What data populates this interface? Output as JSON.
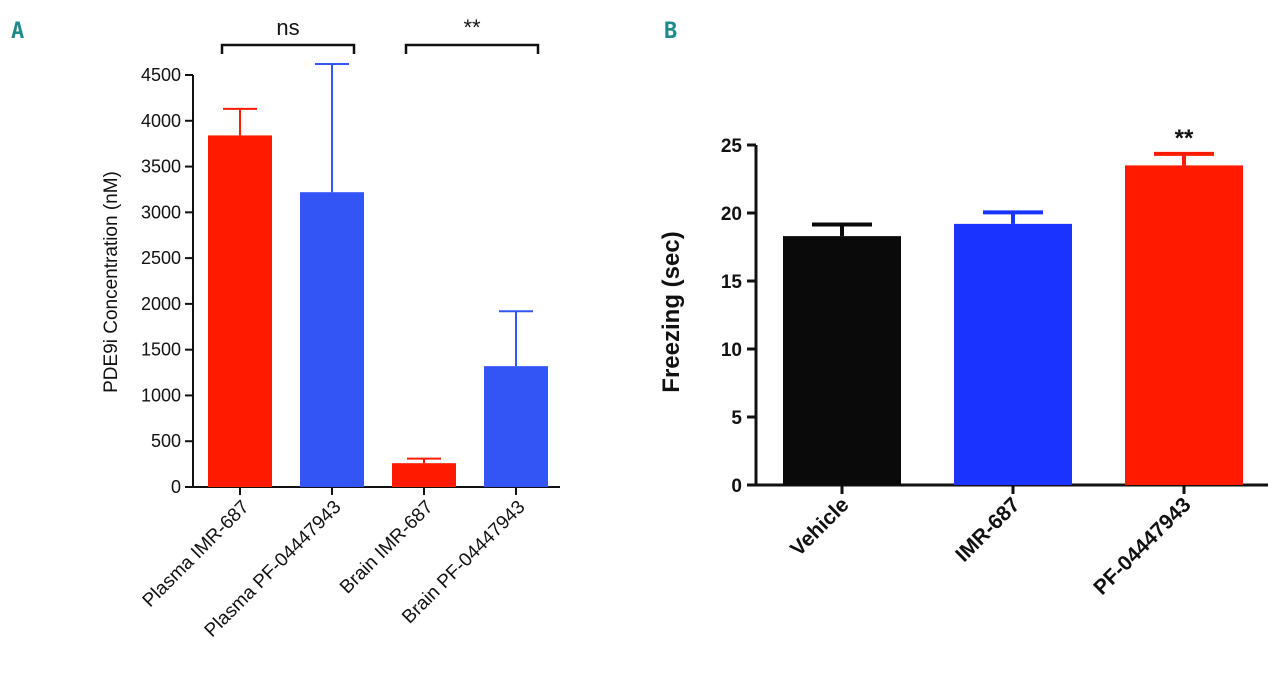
{
  "chart_data": [
    {
      "panel": "A",
      "type": "bar",
      "title": "",
      "xlabel": "",
      "ylabel": "PDE9i Concentration (nM)",
      "ylim": [
        0,
        4500
      ],
      "yticks": [
        "0",
        "500",
        "1000",
        "1500",
        "2000",
        "2500",
        "3000",
        "3500",
        "4000",
        "4500"
      ],
      "categories": [
        "Plasma IMR-687",
        "Plasma PF-04447943",
        "Brain IMR-687",
        "Brain PF-04447943"
      ],
      "values": [
        3840,
        3220,
        260,
        1320
      ],
      "errors": [
        290,
        1400,
        50,
        600
      ],
      "colors": [
        "#ff1a00",
        "#3355f5",
        "#ff1a00",
        "#3355f5"
      ],
      "significance": [
        {
          "from": 0,
          "to": 1,
          "label": "ns"
        },
        {
          "from": 2,
          "to": 3,
          "label": "**"
        }
      ]
    },
    {
      "panel": "B",
      "type": "bar",
      "title": "",
      "xlabel": "",
      "ylabel": "Freezing (sec)",
      "ylim": [
        0,
        25
      ],
      "yticks": [
        "0",
        "5",
        "10",
        "15",
        "20",
        "25"
      ],
      "categories": [
        "Vehicle",
        "IMR-687",
        "PF-04447943"
      ],
      "values": [
        18.3,
        19.2,
        23.5
      ],
      "errors": [
        0.85,
        0.85,
        0.85
      ],
      "colors": [
        "#0a0a0a",
        "#1a33ff",
        "#ff1a00"
      ],
      "significance": [
        {
          "bar": 2,
          "label": "**"
        }
      ]
    }
  ]
}
